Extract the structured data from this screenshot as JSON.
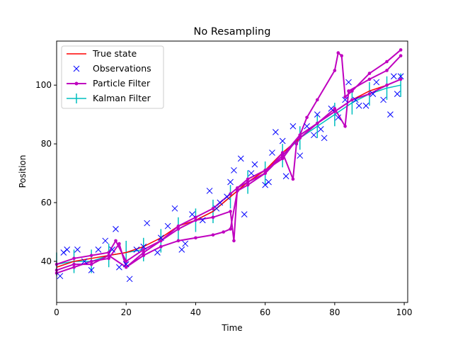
{
  "chart_data": {
    "type": "line",
    "title": "No Resampling",
    "xlabel": "Time",
    "ylabel": "Position",
    "xlim": [
      0,
      101
    ],
    "ylim": [
      26,
      115
    ],
    "xticks": [
      0,
      20,
      40,
      60,
      80,
      100
    ],
    "yticks": [
      40,
      60,
      80,
      100
    ],
    "grid": false,
    "legend_position": "top-left",
    "legend": [
      "True state",
      "Observations",
      "Particle Filter",
      "Kalman Filter"
    ],
    "colors": {
      "true_state": "#ff0000",
      "observations": "#0000ff",
      "particle_filter": "#bf00bf",
      "kalman_filter": "#00bfbf"
    },
    "series": [
      {
        "name": "True state",
        "style": "line",
        "x": [
          0,
          5,
          10,
          15,
          20,
          25,
          30,
          35,
          40,
          45,
          50,
          55,
          60,
          65,
          70,
          75,
          80,
          85,
          90,
          95,
          99
        ],
        "y": [
          38,
          40,
          41,
          42,
          43,
          45,
          48,
          52,
          54,
          57,
          62,
          67,
          71,
          77,
          82,
          87,
          91,
          95,
          98,
          100,
          102
        ]
      },
      {
        "name": "Observations",
        "style": "markers",
        "x": [
          1,
          2,
          3,
          6,
          8,
          10,
          12,
          14,
          16,
          17,
          18,
          20,
          21,
          23,
          25,
          26,
          29,
          30,
          32,
          34,
          36,
          37,
          39,
          42,
          44,
          46,
          47,
          49,
          50,
          51,
          53,
          54,
          56,
          57,
          60,
          61,
          62,
          63,
          65,
          66,
          68,
          70,
          72,
          74,
          75,
          76,
          77,
          79,
          81,
          83,
          84,
          86,
          87,
          89,
          91,
          92,
          94,
          96,
          97,
          98,
          99
        ],
        "y": [
          35,
          43,
          44,
          44,
          40,
          37,
          44,
          47,
          44,
          51,
          38,
          39,
          34,
          44,
          45,
          53,
          43,
          48,
          52,
          58,
          44,
          46,
          56,
          54,
          64,
          58,
          60,
          62,
          67,
          71,
          75,
          56,
          70,
          73,
          66,
          67,
          77,
          84,
          81,
          69,
          86,
          76,
          86,
          83,
          90,
          85,
          82,
          92,
          89,
          95,
          101,
          95,
          93,
          93,
          97,
          101,
          95,
          90,
          103,
          97,
          103
        ]
      },
      {
        "name": "Particle Filter",
        "style": "line-markers",
        "lines": [
          {
            "x": [
              0,
              5,
              10,
              15,
              17,
              20,
              25,
              30,
              35,
              40,
              45,
              50,
              51,
              52,
              55,
              60,
              65,
              68,
              69,
              70,
              75,
              80,
              83,
              84,
              90,
              95,
              99
            ],
            "y": [
              39,
              41,
              42,
              43,
              47,
              40,
              44,
              47,
              51,
              54,
              55,
              57,
              47,
              65,
              67,
              70,
              77,
              68,
              80,
              82,
              87,
              92,
              86,
              98,
              102,
              105,
              110
            ]
          },
          {
            "x": [
              0,
              5,
              10,
              15,
              20,
              25,
              30,
              35,
              40,
              45,
              50,
              55,
              60,
              65,
              70,
              72,
              75,
              80,
              81,
              82,
              83,
              85,
              90,
              95,
              99
            ],
            "y": [
              37,
              39,
              39,
              42,
              38,
              43,
              47,
              52,
              55,
              58,
              63,
              68,
              71,
              75,
              83,
              89,
              95,
              105,
              111,
              110,
              96,
              98,
              104,
              108,
              112
            ]
          },
          {
            "x": [
              0,
              5,
              10,
              15,
              18,
              20,
              25,
              30,
              35,
              40,
              45,
              48,
              50,
              52,
              55,
              60,
              65,
              70,
              75,
              80,
              85,
              90,
              95,
              99
            ],
            "y": [
              36,
              38,
              40,
              41,
              46,
              38,
              42,
              45,
              47,
              48,
              49,
              50,
              51,
              64,
              66,
              70,
              76,
              83,
              87,
              91,
              95,
              97,
              100,
              102
            ]
          }
        ]
      },
      {
        "name": "Kalman Filter",
        "style": "errorbar",
        "x": [
          0,
          5,
          10,
          15,
          20,
          25,
          30,
          35,
          40,
          45,
          50,
          55,
          60,
          65,
          70,
          75,
          80,
          85,
          90,
          95,
          99
        ],
        "y": [
          39,
          40,
          40,
          42,
          43,
          44,
          47,
          51,
          54,
          57,
          62,
          67,
          70,
          76,
          82,
          86,
          90,
          94,
          97,
          99,
          100
        ],
        "yerr": 4
      }
    ]
  }
}
